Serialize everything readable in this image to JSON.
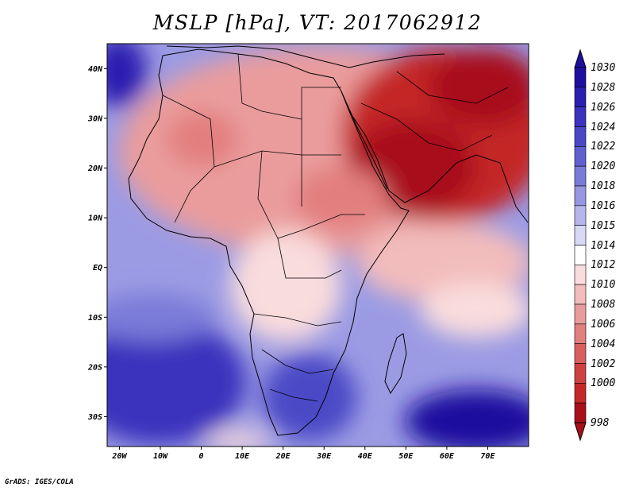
{
  "title": "MSLP [hPa], VT: 2017062912",
  "footer": "GrADS: IGES/COLA",
  "map": {
    "lon_range": [
      -23,
      80
    ],
    "lat_range": [
      -36,
      45
    ],
    "lat_ticks": [
      {
        "value": 40,
        "label": "40N"
      },
      {
        "value": 30,
        "label": "30N"
      },
      {
        "value": 20,
        "label": "20N"
      },
      {
        "value": 10,
        "label": "10N"
      },
      {
        "value": 0,
        "label": "EQ"
      },
      {
        "value": -10,
        "label": "10S"
      },
      {
        "value": -20,
        "label": "20S"
      },
      {
        "value": -30,
        "label": "30S"
      }
    ],
    "lon_ticks": [
      {
        "value": -20,
        "label": "20W"
      },
      {
        "value": -10,
        "label": "10W"
      },
      {
        "value": 0,
        "label": "0"
      },
      {
        "value": 10,
        "label": "10E"
      },
      {
        "value": 20,
        "label": "20E"
      },
      {
        "value": 30,
        "label": "30E"
      },
      {
        "value": 40,
        "label": "40E"
      },
      {
        "value": 50,
        "label": "50E"
      },
      {
        "value": 60,
        "label": "60E"
      },
      {
        "value": 70,
        "label": "70E"
      }
    ]
  },
  "colorbar": {
    "levels": [
      "1030",
      "1028",
      "1026",
      "1024",
      "1022",
      "1020",
      "1018",
      "1016",
      "1015",
      "1014",
      "1012",
      "1010",
      "1008",
      "1006",
      "1004",
      "1002",
      "1000",
      "998"
    ],
    "colors": [
      "#1d0f9f",
      "#2a1fb0",
      "#3b32bd",
      "#4b48c6",
      "#6160d0",
      "#7a7ad9",
      "#9696e2",
      "#b6b6ec",
      "#d8d8f5",
      "#ffffff",
      "#f9dcdc",
      "#f2bcbc",
      "#ea9c9c",
      "#e27e7e",
      "#d95f5f",
      "#cf4141",
      "#c42828",
      "#a80f1a"
    ]
  }
}
